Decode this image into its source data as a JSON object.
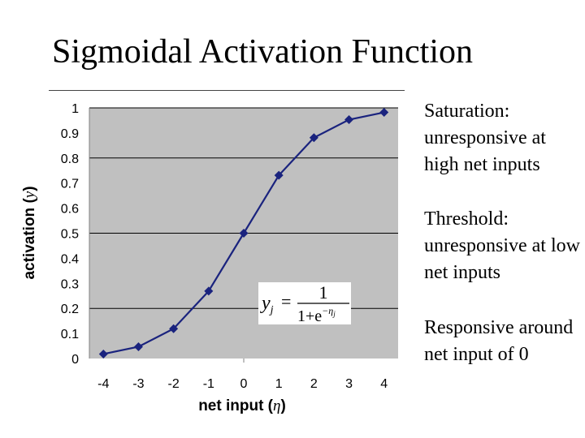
{
  "slide": {
    "title": "Sigmoidal Activation Function",
    "notes": [
      "Saturation: unresponsive at high net inputs",
      "Threshold: unresponsive at low net inputs",
      "Responsive around net input of 0"
    ],
    "formula": {
      "lhs_var": "y",
      "lhs_sub": "j",
      "numerator": "1",
      "denominator_base": "1+e",
      "exponent": "−η",
      "exponent_sub": "j"
    }
  },
  "colors": {
    "plot_background": "#c0c0c0",
    "series": "#1a237e",
    "gridline": "#000000"
  },
  "chart_data": {
    "type": "line",
    "x": [
      -4,
      -3,
      -2,
      -1,
      0,
      1,
      2,
      3,
      4
    ],
    "series": [
      {
        "values": [
          0.018,
          0.047,
          0.119,
          0.269,
          0.5,
          0.731,
          0.881,
          0.953,
          0.982
        ]
      }
    ],
    "xticks": [
      "-4",
      "-3",
      "-2",
      "-1",
      "0",
      "1",
      "2",
      "3",
      "4"
    ],
    "yticks": [
      "0",
      "0.1",
      "0.2",
      "0.3",
      "0.4",
      "0.5",
      "0.6",
      "0.7",
      "0.8",
      "0.9",
      "1"
    ],
    "xlabel_prefix": "net input (",
    "xlabel_symbol": "η",
    "xlabel_suffix": ")",
    "ylabel_prefix": "activation (",
    "ylabel_symbol": "y",
    "ylabel_suffix": ")",
    "xlim": [
      -4.4,
      4.4
    ],
    "ylim": [
      0,
      1
    ],
    "horizontal_gridlines": [
      0.2,
      0.5,
      0.8
    ],
    "marker": "diamond",
    "legend": "none"
  }
}
